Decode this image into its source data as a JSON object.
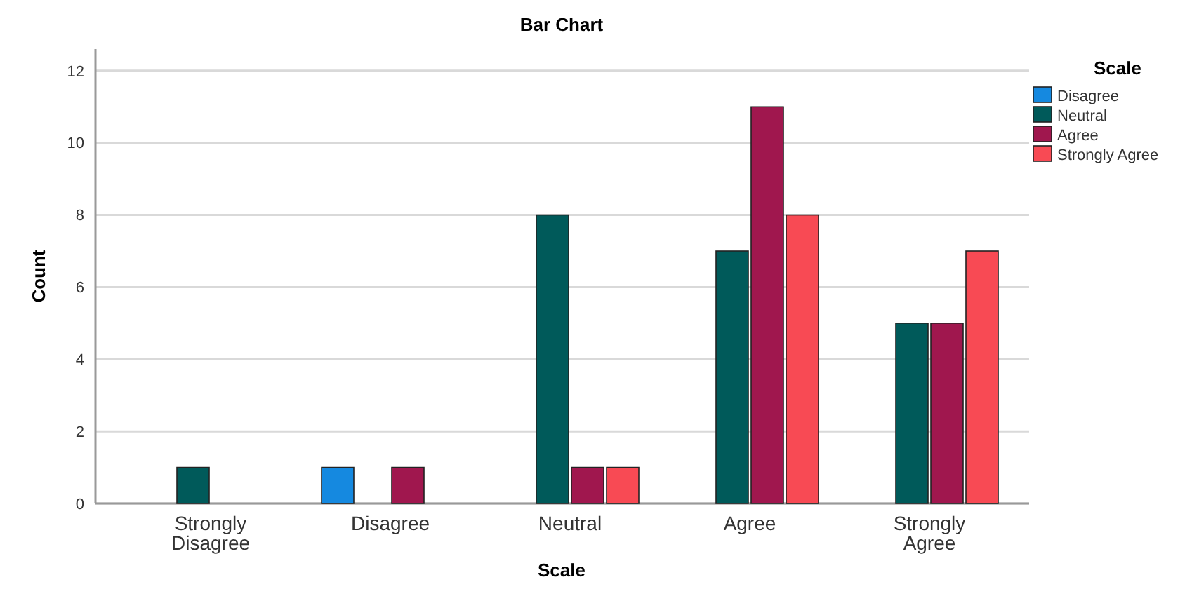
{
  "chart_data": {
    "type": "bar",
    "title": "Bar Chart",
    "xlabel": "Scale",
    "ylabel": "Count",
    "legend_title": "Scale",
    "categories": [
      "Strongly Disagree",
      "Disagree",
      "Neutral",
      "Agree",
      "Strongly Agree"
    ],
    "series": [
      {
        "name": "Disagree",
        "color": "#1589e0",
        "values": [
          null,
          1,
          null,
          null,
          null
        ]
      },
      {
        "name": "Neutral",
        "color": "#005a5a",
        "values": [
          1,
          null,
          8,
          7,
          5
        ]
      },
      {
        "name": "Agree",
        "color": "#a0174e",
        "values": [
          null,
          1,
          1,
          11,
          5
        ]
      },
      {
        "name": "Strongly Agree",
        "color": "#f84a54",
        "values": [
          null,
          null,
          1,
          8,
          7
        ]
      }
    ],
    "ylim": [
      0,
      12.6
    ],
    "yticks": [
      0,
      2,
      4,
      6,
      8,
      10,
      12
    ],
    "grid": "y",
    "legend": "top right"
  }
}
